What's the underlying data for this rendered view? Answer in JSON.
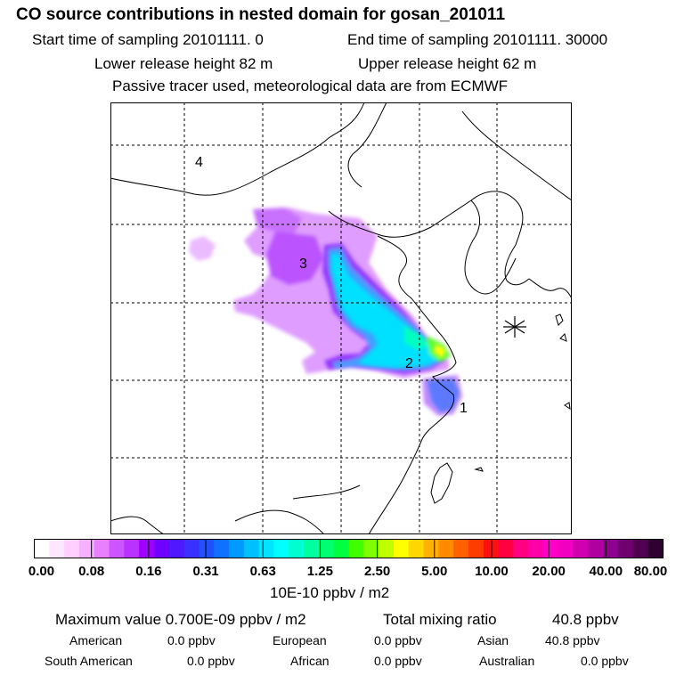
{
  "title": "CO  source contributions in nested domain for gosan_201011",
  "sampling": {
    "start": "Start time of sampling 20101111.     0",
    "end": "End time of sampling 20101111. 30000"
  },
  "release": {
    "lower": "Lower release height   82 m",
    "upper": "Upper release height   62 m"
  },
  "info": "Passive tracer used, meteorological data are from ECMWF",
  "map": {
    "region_labels": [
      "1",
      "2",
      "3",
      "4"
    ]
  },
  "legend": {
    "tick_labels": [
      "0.00",
      "0.08",
      "0.16",
      "0.31",
      "0.63",
      "1.25",
      "2.50",
      "5.00",
      "10.00",
      "20.00",
      "40.00",
      "80.00"
    ],
    "colors": [
      "#ffffff",
      "#ffe8ff",
      "#ffcfff",
      "#f5b0ff",
      "#e680ff",
      "#cc55ff",
      "#b833ff",
      "#a000ff",
      "#7000ff",
      "#5018ff",
      "#3a30ff",
      "#2050ff",
      "#1070ff",
      "#0099ff",
      "#00c0ff",
      "#00e5ff",
      "#00ffff",
      "#00ffd0",
      "#00ffa0",
      "#00ff70",
      "#00ff40",
      "#40ff00",
      "#80ff00",
      "#c0ff00",
      "#ffff00",
      "#ffd700",
      "#ffb000",
      "#ff8c00",
      "#ff6000",
      "#ff3c00",
      "#ff1010",
      "#ff0040",
      "#ff0080",
      "#ff00a8",
      "#ff00c8",
      "#f000c0",
      "#d000b0",
      "#b000a0",
      "#900090",
      "#700070",
      "#500050",
      "#300030"
    ],
    "units": "10E-10 ppbv / m2"
  },
  "summary": {
    "max_value": "Maximum value  0.700E-09 ppbv / m2",
    "total_label": "Total mixing ratio",
    "total_value": "40.8 ppbv"
  },
  "regions": [
    {
      "name": "American",
      "value": "0.0 ppbv"
    },
    {
      "name": "European",
      "value": "0.0 ppbv"
    },
    {
      "name": "Asian",
      "value": "40.8 ppbv"
    },
    {
      "name": "South American",
      "value": "0.0 ppbv"
    },
    {
      "name": "African",
      "value": "0.0 ppbv"
    },
    {
      "name": "Australian",
      "value": "0.0 ppbv"
    }
  ]
}
